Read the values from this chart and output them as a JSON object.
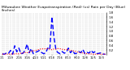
{
  "title": "Milwaukee Weather Evapotranspiration (Red) (vs) Rain per Day (Blue) (Inches)",
  "title_fontsize": 3.2,
  "background_color": "#ffffff",
  "ylim": [
    0,
    1.8
  ],
  "yticks": [
    0.2,
    0.4,
    0.6,
    0.8,
    1.0,
    1.2,
    1.4,
    1.6,
    1.8
  ],
  "ytick_fontsize": 2.8,
  "xtick_fontsize": 2.5,
  "x_labels": [
    "1/1",
    "1/8",
    "1/15",
    "1/22",
    "1/29",
    "2/5",
    "2/12",
    "2/19",
    "2/26",
    "3/5",
    "3/12",
    "3/19",
    "3/26",
    "4/2",
    "4/9",
    "4/16",
    "4/23",
    "4/30",
    "5/7",
    "5/14",
    "5/21",
    "5/28",
    "6/4",
    "6/11",
    "6/18",
    "6/25",
    "7/2",
    "7/9",
    "7/16",
    "7/23",
    "7/30",
    "8/6",
    "8/13",
    "8/20",
    "8/27",
    "9/3",
    "9/10",
    "9/17",
    "9/24",
    "10/1",
    "10/8",
    "10/15",
    "10/22",
    "10/29",
    "11/5",
    "11/12",
    "11/19",
    "11/26",
    "12/3",
    "12/10",
    "12/17"
  ],
  "grid_color": "#999999",
  "grid_lw": 0.3,
  "rain_color": "#0000ff",
  "et_color": "#ff0000",
  "rain_lw": 1.0,
  "et_lw": 0.8,
  "rain_values": [
    0.04,
    0.01,
    0.08,
    0.06,
    0.18,
    0.02,
    0.38,
    0.12,
    0.28,
    0.04,
    0.06,
    0.18,
    0.45,
    0.08,
    0.26,
    0.04,
    0.1,
    0.13,
    0.18,
    0.09,
    0.04,
    0.07,
    0.28,
    0.22,
    1.62,
    0.75,
    0.18,
    0.08,
    0.04,
    0.13,
    0.06,
    0.1,
    0.28,
    0.08,
    0.18,
    0.04,
    0.06,
    0.13,
    0.08,
    0.22,
    0.04,
    0.1,
    0.06,
    0.18,
    0.08,
    0.13,
    0.04,
    0.06,
    0.08,
    0.02,
    0.01
  ],
  "et_values": [
    0.02,
    0.02,
    0.02,
    0.03,
    0.02,
    0.03,
    0.03,
    0.04,
    0.04,
    0.06,
    0.07,
    0.09,
    0.08,
    0.11,
    0.14,
    0.16,
    0.18,
    0.2,
    0.23,
    0.25,
    0.24,
    0.25,
    0.26,
    0.23,
    0.21,
    0.24,
    0.23,
    0.26,
    0.25,
    0.23,
    0.21,
    0.23,
    0.21,
    0.18,
    0.17,
    0.15,
    0.12,
    0.1,
    0.08,
    0.07,
    0.05,
    0.04,
    0.03,
    0.03,
    0.02,
    0.02,
    0.02,
    0.02,
    0.02,
    0.02,
    0.02
  ]
}
